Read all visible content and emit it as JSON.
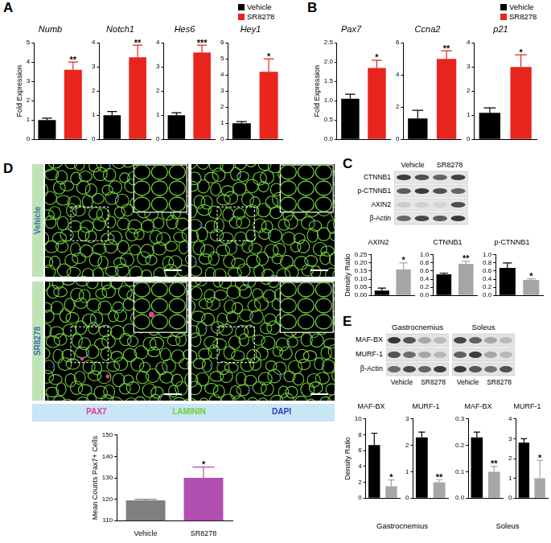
{
  "panels": [
    {
      "label": "A",
      "legend_items": [
        {
          "name": "Vehicle",
          "color": "#000000"
        },
        {
          "name": "SR8278",
          "color": "#e8251d"
        }
      ]
    },
    {
      "label": "B",
      "legend_items": [
        {
          "name": "Vehicle",
          "color": "#000000"
        },
        {
          "name": "SR8278",
          "color": "#e8251d"
        }
      ]
    },
    {
      "label": "C"
    },
    {
      "label": "D"
    },
    {
      "label": "E"
    }
  ],
  "chart_data": [
    {
      "panel": "A",
      "type": "bar",
      "title": "Numb",
      "ylabel": "Fold Expression",
      "categories": [
        null,
        null
      ],
      "values": [
        1.0,
        3.6
      ],
      "errors": [
        0.1,
        0.4
      ],
      "colors": [
        "#000000",
        "#e8251d"
      ],
      "significance": "**",
      "ylim": [
        0,
        5
      ],
      "yticks": [
        0,
        1,
        2,
        3,
        4,
        5
      ]
    },
    {
      "panel": "A",
      "type": "bar",
      "title": "Notch1",
      "categories": [
        null,
        null
      ],
      "values": [
        1.0,
        3.4
      ],
      "errors": [
        0.15,
        0.5
      ],
      "colors": [
        "#000000",
        "#e8251d"
      ],
      "significance": "**",
      "ylim": [
        0,
        4
      ],
      "yticks": [
        0,
        1,
        2,
        3,
        4
      ]
    },
    {
      "panel": "A",
      "type": "bar",
      "title": "Hes6",
      "categories": [
        null,
        null
      ],
      "values": [
        1.0,
        3.6
      ],
      "errors": [
        0.1,
        0.3
      ],
      "colors": [
        "#000000",
        "#e8251d"
      ],
      "significance": "***",
      "ylim": [
        0,
        4
      ],
      "yticks": [
        0,
        1,
        2,
        3,
        4
      ]
    },
    {
      "panel": "A",
      "type": "bar",
      "title": "Hey1",
      "categories": [
        null,
        null
      ],
      "values": [
        1.0,
        4.2
      ],
      "errors": [
        0.1,
        0.8
      ],
      "colors": [
        "#000000",
        "#e8251d"
      ],
      "significance": "*",
      "ylim": [
        0,
        6
      ],
      "yticks": [
        0,
        1,
        2,
        3,
        4,
        5,
        6
      ]
    },
    {
      "panel": "B",
      "type": "bar",
      "title": "Pax7",
      "ylabel": "Fold Expression",
      "categories": [
        null,
        null
      ],
      "values": [
        1.05,
        1.85
      ],
      "errors": [
        0.12,
        0.2
      ],
      "colors": [
        "#000000",
        "#e8251d"
      ],
      "significance": "*",
      "ylim": [
        0,
        2.5
      ],
      "yticks": [
        {
          "value": 0,
          "label": "0.0"
        },
        {
          "value": 0.5,
          "label": "0.5"
        },
        {
          "value": 1,
          "label": "1.0"
        },
        {
          "value": 1.5,
          "label": "1.5"
        },
        {
          "value": 2,
          "label": "2.0"
        },
        {
          "value": 2.5,
          "label": "2.5"
        }
      ]
    },
    {
      "panel": "B",
      "type": "bar",
      "title": "Ccna2",
      "categories": [
        null,
        null
      ],
      "values": [
        1.3,
        5.0
      ],
      "errors": [
        0.5,
        0.5
      ],
      "colors": [
        "#000000",
        "#e8251d"
      ],
      "significance": "**",
      "ylim": [
        0,
        6
      ],
      "yticks": [
        0,
        2,
        4,
        6
      ]
    },
    {
      "panel": "B",
      "type": "bar",
      "title": "p21",
      "categories": [
        null,
        null
      ],
      "values": [
        1.1,
        3.0
      ],
      "errors": [
        0.2,
        0.5
      ],
      "colors": [
        "#000000",
        "#e8251d"
      ],
      "significance": "*",
      "ylim": [
        0,
        4
      ],
      "yticks": [
        0,
        1,
        2,
        3,
        4
      ]
    },
    {
      "panel": "C",
      "type": "bar",
      "title": "AXIN2",
      "ylabel": "Density Ratio",
      "categories": [
        null,
        null
      ],
      "values": [
        0.03,
        0.16
      ],
      "errors": [
        0.015,
        0.04
      ],
      "colors": [
        "#000000",
        "#a6a6a6"
      ],
      "significance": "*",
      "ylim": [
        0,
        0.25
      ],
      "yticks": [
        {
          "value": 0,
          "label": "0.00"
        },
        {
          "value": 0.05,
          "label": "0.05"
        },
        {
          "value": 0.1,
          "label": "0.10"
        },
        {
          "value": 0.15,
          "label": "0.15"
        },
        {
          "value": 0.2,
          "label": "0.20"
        },
        {
          "value": 0.25,
          "label": "0.25"
        }
      ]
    },
    {
      "panel": "C",
      "type": "bar",
      "title": "CTNNB1",
      "categories": [
        null,
        null
      ],
      "values": [
        0.52,
        0.78
      ],
      "errors": [
        0.03,
        0.06
      ],
      "colors": [
        "#000000",
        "#a6a6a6"
      ],
      "significance": "**",
      "ylim": [
        0,
        1
      ],
      "yticks": [
        {
          "value": 0,
          "label": "0.0"
        },
        {
          "value": 0.2,
          "label": "0.2"
        },
        {
          "value": 0.4,
          "label": "0.4"
        },
        {
          "value": 0.6,
          "label": "0.6"
        },
        {
          "value": 0.8,
          "label": "0.8"
        },
        {
          "value": 1,
          "label": "1.0"
        }
      ]
    },
    {
      "panel": "C",
      "type": "bar",
      "title": "p-CTNNB1",
      "categories": [
        null,
        null
      ],
      "values": [
        0.68,
        0.38
      ],
      "errors": [
        0.12,
        0.03
      ],
      "colors": [
        "#000000",
        "#a6a6a6"
      ],
      "significance": "*",
      "ylim": [
        0,
        1
      ],
      "yticks": [
        {
          "value": 0,
          "label": "0.0"
        },
        {
          "value": 0.2,
          "label": "0.2"
        },
        {
          "value": 0.4,
          "label": "0.4"
        },
        {
          "value": 0.6,
          "label": "0.6"
        },
        {
          "value": 0.8,
          "label": "0.8"
        },
        {
          "value": 1,
          "label": "1.0"
        }
      ]
    },
    {
      "panel": "D",
      "type": "bar",
      "ylabel": "Mean Counts Pax7+ Cells",
      "categories": [
        "Vehicle",
        "SR8278"
      ],
      "values": [
        119.5,
        130
      ],
      "errors": [
        0.5,
        5
      ],
      "colors": [
        "#7f7f7f",
        "#b04fb0"
      ],
      "significance": "*",
      "ylim": [
        110,
        150
      ],
      "yticks": [
        110,
        120,
        130,
        140,
        150
      ]
    },
    {
      "panel": "E",
      "group": "Gastrocnemius",
      "type": "bar",
      "title": "MAF-BX",
      "ylabel": "Density Ratio",
      "categories": [
        null,
        null
      ],
      "values": [
        6.7,
        1.5
      ],
      "errors": [
        1.5,
        0.8
      ],
      "colors": [
        "#000000",
        "#a6a6a6"
      ],
      "significance": "*",
      "ylim": [
        0,
        10
      ],
      "yticks": [
        0,
        2,
        4,
        6,
        8,
        10
      ]
    },
    {
      "panel": "E",
      "group": "Gastrocnemius",
      "type": "bar",
      "title": "MURF-1",
      "categories": [
        null,
        null
      ],
      "values": [
        2.3,
        0.6
      ],
      "errors": [
        0.2,
        0.1
      ],
      "colors": [
        "#000000",
        "#a6a6a6"
      ],
      "significance": "**",
      "ylim": [
        0,
        3
      ],
      "yticks": [
        0,
        1,
        2,
        3
      ]
    },
    {
      "panel": "E",
      "group": "Soleus",
      "type": "bar",
      "title": "MAF-BX",
      "categories": [
        null,
        null
      ],
      "values": [
        0.23,
        0.1
      ],
      "errors": [
        0.02,
        0.02
      ],
      "colors": [
        "#000000",
        "#a6a6a6"
      ],
      "significance": "**",
      "ylim": [
        0,
        0.3
      ],
      "yticks": [
        {
          "value": 0,
          "label": "0.0"
        },
        {
          "value": 0.1,
          "label": "0.1"
        },
        {
          "value": 0.2,
          "label": "0.2"
        },
        {
          "value": 0.3,
          "label": "0.3"
        }
      ]
    },
    {
      "panel": "E",
      "group": "Soleus",
      "type": "bar",
      "title": "MURF-1",
      "categories": [
        null,
        null
      ],
      "values": [
        2.8,
        1.0
      ],
      "errors": [
        0.2,
        0.9
      ],
      "colors": [
        "#000000",
        "#a6a6a6"
      ],
      "significance": "*",
      "ylim": [
        0,
        4
      ],
      "yticks": [
        0,
        1,
        2,
        3,
        4
      ]
    }
  ],
  "blots": {
    "C": {
      "lanes": [
        "Vehicle",
        "SR8278"
      ],
      "rows": [
        "CTNNB1",
        "p-CTNNB1",
        "AXIN2",
        "β-Actin"
      ]
    },
    "E": {
      "groups": [
        {
          "title": "Gastrocnemius",
          "lanes": [
            "Vehicle",
            "SR8278"
          ]
        },
        {
          "title": "Soleus",
          "lanes": [
            "Vehicle",
            "SR8278"
          ]
        }
      ],
      "rows": [
        "MAF-BX",
        "MURF-1",
        "β-Actin"
      ]
    }
  },
  "images": {
    "rows": [
      {
        "name": "Vehicle"
      },
      {
        "name": "SR8278"
      }
    ],
    "stains": [
      {
        "name": "PAX7",
        "color": "#e0409a"
      },
      {
        "name": "LAMININ",
        "color": "#6fd13a"
      },
      {
        "name": "DAPI",
        "color": "#2f3fbf"
      }
    ]
  }
}
